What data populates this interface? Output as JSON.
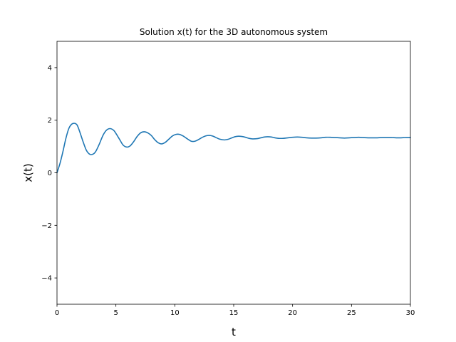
{
  "chart_data": {
    "type": "line",
    "title": "Solution x(t) for the 3D autonomous system",
    "xlabel": "t",
    "ylabel": "x(t)",
    "xlim": [
      0,
      30
    ],
    "ylim": [
      -5,
      5
    ],
    "x_ticks": [
      0,
      5,
      10,
      15,
      20,
      25,
      30
    ],
    "x_tick_labels": [
      "0",
      "5",
      "10",
      "15",
      "20",
      "25",
      "30"
    ],
    "y_ticks": [
      -4,
      -2,
      0,
      2,
      4
    ],
    "y_tick_labels": [
      "−4",
      "−2",
      "0",
      "2",
      "4"
    ],
    "grid": false,
    "legend": "none",
    "series": [
      {
        "color": "#1f77b4",
        "x": [
          0,
          0.25,
          0.5,
          0.75,
          1.0,
          1.25,
          1.5,
          1.7,
          1.9,
          2.2,
          2.5,
          2.8,
          3.1,
          3.3,
          3.6,
          3.9,
          4.2,
          4.5,
          4.8,
          5.0,
          5.3,
          5.6,
          5.9,
          6.2,
          6.5,
          6.8,
          7.1,
          7.4,
          7.7,
          8.0,
          8.3,
          8.6,
          8.9,
          9.2,
          9.5,
          9.8,
          10.1,
          10.4,
          10.7,
          11.1,
          11.4,
          11.7,
          12.0,
          12.3,
          12.6,
          12.9,
          13.2,
          13.5,
          13.8,
          14.2,
          14.5,
          14.8,
          15.1,
          15.4,
          15.7,
          16.0,
          16.3,
          16.6,
          17.0,
          17.3,
          17.6,
          17.9,
          18.2,
          18.5,
          18.8,
          19.2,
          19.6,
          20.0,
          20.4,
          20.8,
          21.2,
          21.6,
          22.0,
          22.4,
          22.8,
          23.2,
          23.6,
          24.0,
          24.4,
          24.8,
          25.2,
          25.6,
          26.0,
          26.4,
          26.8,
          27.2,
          27.6,
          28.0,
          28.4,
          28.8,
          29.2,
          29.6,
          30.0
        ],
        "values": [
          0.0,
          0.35,
          0.8,
          1.3,
          1.68,
          1.85,
          1.88,
          1.82,
          1.6,
          1.2,
          0.85,
          0.7,
          0.72,
          0.82,
          1.1,
          1.42,
          1.62,
          1.68,
          1.62,
          1.5,
          1.28,
          1.06,
          0.98,
          1.02,
          1.18,
          1.38,
          1.52,
          1.56,
          1.52,
          1.42,
          1.26,
          1.14,
          1.1,
          1.16,
          1.28,
          1.4,
          1.46,
          1.46,
          1.4,
          1.28,
          1.2,
          1.2,
          1.26,
          1.34,
          1.4,
          1.42,
          1.4,
          1.34,
          1.28,
          1.25,
          1.27,
          1.32,
          1.37,
          1.39,
          1.38,
          1.35,
          1.31,
          1.29,
          1.3,
          1.33,
          1.36,
          1.37,
          1.36,
          1.33,
          1.31,
          1.31,
          1.33,
          1.35,
          1.36,
          1.35,
          1.33,
          1.32,
          1.32,
          1.33,
          1.35,
          1.35,
          1.34,
          1.33,
          1.32,
          1.33,
          1.34,
          1.35,
          1.34,
          1.33,
          1.33,
          1.33,
          1.34,
          1.34,
          1.34,
          1.33,
          1.33,
          1.34,
          1.34
        ]
      }
    ]
  }
}
